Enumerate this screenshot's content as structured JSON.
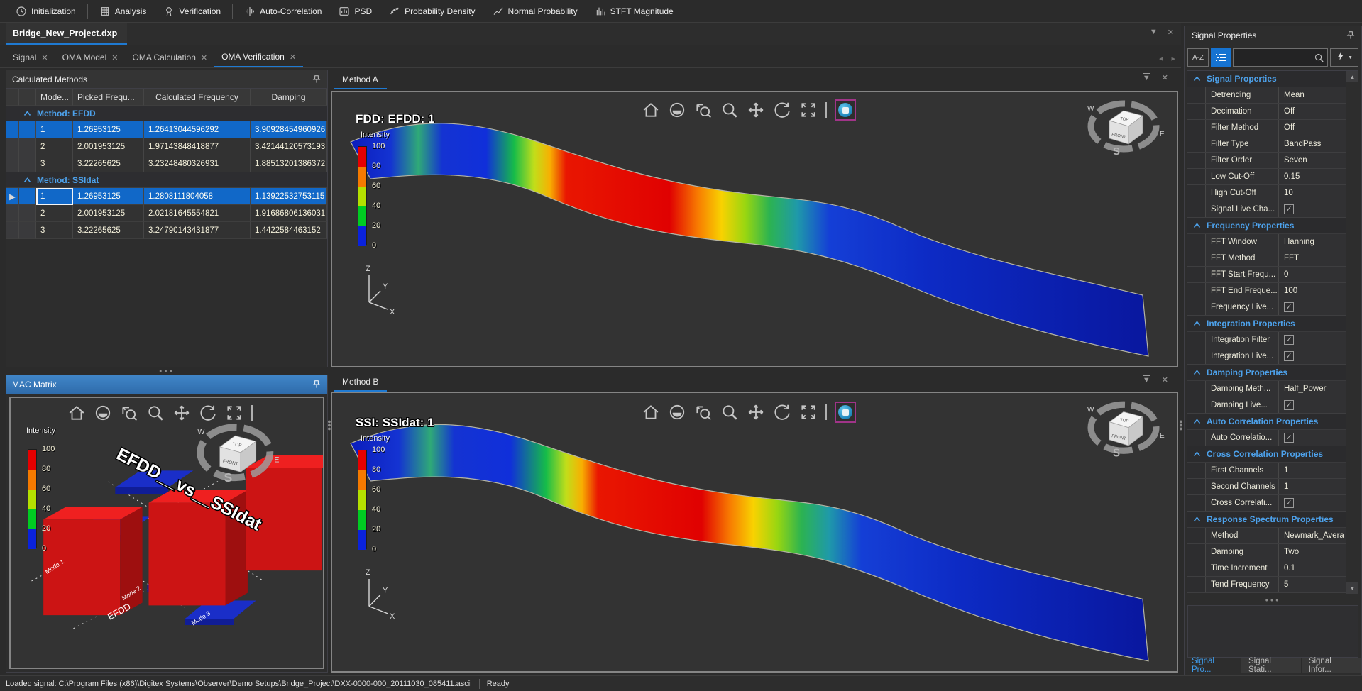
{
  "toolbar": {
    "groups": [
      [
        {
          "label": "Initialization",
          "icon": "clock-icon"
        }
      ],
      [
        {
          "label": "Analysis",
          "icon": "building-icon"
        },
        {
          "label": "Verification",
          "icon": "badge-icon"
        }
      ],
      [
        {
          "label": "Auto-Correlation",
          "icon": "waveform-icon"
        },
        {
          "label": "PSD",
          "icon": "psd-chart-icon"
        },
        {
          "label": "Probability Density",
          "icon": "scatter-icon"
        },
        {
          "label": "Normal Probability",
          "icon": "trend-line-icon"
        },
        {
          "label": "STFT Magnitude",
          "icon": "bars-icon"
        }
      ]
    ]
  },
  "document_tab": {
    "title": "Bridge_New_Project.dxp"
  },
  "workspace_tabs": [
    {
      "label": "Signal",
      "active": false
    },
    {
      "label": "OMA Model",
      "active": false
    },
    {
      "label": "OMA Calculation",
      "active": false
    },
    {
      "label": "OMA Verification",
      "active": true
    }
  ],
  "calculated_methods": {
    "title": "Calculated Methods",
    "columns": [
      "Mode...",
      "Picked  Frequ...",
      "Calculated Frequency",
      "Damping"
    ],
    "groups": [
      {
        "label": "Method: EFDD",
        "rows": [
          {
            "mode": "1",
            "picked": "1.26953125",
            "calculated": "1.26413044596292",
            "damping": "3.90928454960926",
            "selected": true,
            "current": false
          },
          {
            "mode": "2",
            "picked": "2.001953125",
            "calculated": "1.97143848418877",
            "damping": "3.42144120573193",
            "selected": false,
            "current": false
          },
          {
            "mode": "3",
            "picked": "3.22265625",
            "calculated": "3.23248480326931",
            "damping": "1.88513201386372",
            "selected": false,
            "current": false
          }
        ]
      },
      {
        "label": "Method: SSIdat",
        "rows": [
          {
            "mode": "1",
            "picked": "1.26953125",
            "calculated": "1.2808111804058",
            "damping": "1.13922532753115",
            "selected": true,
            "current": true
          },
          {
            "mode": "2",
            "picked": "2.001953125",
            "calculated": "2.02181645554821",
            "damping": "1.91686806136031",
            "selected": false,
            "current": false
          },
          {
            "mode": "3",
            "picked": "3.22265625",
            "calculated": "3.24790143431877",
            "damping": "1.4422584463152",
            "selected": false,
            "current": false
          }
        ]
      }
    ]
  },
  "mac_matrix": {
    "title": "MAC Matrix",
    "plot_title": "EFDD__vs__SSIdat",
    "axis_label": "EFDD",
    "x_labels": [
      "Mode 1",
      "Mode 2",
      "Mode 3"
    ],
    "colorbar": {
      "label": "Intensity",
      "ticks": [
        "100",
        "80",
        "60",
        "40",
        "20",
        "0"
      ]
    },
    "toolbar_icons": [
      "home-icon",
      "orbit-icon",
      "zoom-region-icon",
      "zoom-icon",
      "pan-icon",
      "rotate-icon",
      "expand-icon",
      "separator"
    ]
  },
  "method_a": {
    "tab": "Method A",
    "plot_title": "FDD: EFDD: 1",
    "colorbar": {
      "label": "Intensity",
      "ticks": [
        "100",
        "80",
        "60",
        "40",
        "20",
        "0"
      ]
    },
    "toolbar_icons": [
      "home-icon",
      "orbit-icon",
      "zoom-region-icon",
      "zoom-icon",
      "pan-icon",
      "rotate-icon",
      "expand-icon",
      "separator",
      "record-icon"
    ]
  },
  "method_b": {
    "tab": "Method B",
    "plot_title": "SSI: SSIdat: 1",
    "colorbar": {
      "label": "Intensity",
      "ticks": [
        "100",
        "80",
        "60",
        "40",
        "20",
        "0"
      ]
    },
    "toolbar_icons": [
      "home-icon",
      "orbit-icon",
      "zoom-region-icon",
      "zoom-icon",
      "pan-icon",
      "rotate-icon",
      "expand-icon",
      "separator",
      "record-icon"
    ]
  },
  "nav_cube": {
    "top": "TOP",
    "front": "FRONT",
    "west": "W",
    "east": "E",
    "south": "S"
  },
  "axis_triad": {
    "x": "X",
    "y": "Y",
    "z": "Z"
  },
  "signal_properties": {
    "title": "Signal Properties",
    "filter": {
      "az_label": "A-Z",
      "search_placeholder": ""
    },
    "groups": [
      {
        "label": "Signal Properties",
        "rows": [
          {
            "name": "Detrending",
            "value": "Mean",
            "type": "text"
          },
          {
            "name": "Decimation",
            "value": "Off",
            "type": "text"
          },
          {
            "name": "Filter Method",
            "value": "Off",
            "type": "text"
          },
          {
            "name": "Filter Type",
            "value": "BandPass",
            "type": "text"
          },
          {
            "name": "Filter Order",
            "value": "Seven",
            "type": "text"
          },
          {
            "name": "Low Cut-Off",
            "value": "0.15",
            "type": "text"
          },
          {
            "name": "High Cut-Off",
            "value": "10",
            "type": "text"
          },
          {
            "name": "Signal  Live  Cha...",
            "value": "checked",
            "type": "check"
          }
        ]
      },
      {
        "label": "Frequency Properties",
        "rows": [
          {
            "name": "FFT Window",
            "value": "Hanning",
            "type": "text"
          },
          {
            "name": "FFT Method",
            "value": "FFT",
            "type": "text"
          },
          {
            "name": "FFT  Start  Frequ...",
            "value": "0",
            "type": "text"
          },
          {
            "name": "FFT  End  Freque...",
            "value": "100",
            "type": "text"
          },
          {
            "name": "Frequency  Live...",
            "value": "checked",
            "type": "check"
          }
        ]
      },
      {
        "label": "Integration Properties",
        "rows": [
          {
            "name": "Integration Filter",
            "value": "checked",
            "type": "check"
          },
          {
            "name": "Integration  Live...",
            "value": "checked",
            "type": "check"
          }
        ]
      },
      {
        "label": "Damping Properties",
        "rows": [
          {
            "name": "Damping  Meth...",
            "value": "Half_Power",
            "type": "text"
          },
          {
            "name": "Damping  Live...",
            "value": "checked",
            "type": "check"
          }
        ]
      },
      {
        "label": "Auto Correlation Properties",
        "rows": [
          {
            "name": "Auto  Correlatio...",
            "value": "checked",
            "type": "check"
          }
        ]
      },
      {
        "label": "Cross Correlation Properties",
        "rows": [
          {
            "name": "First Channels",
            "value": "1",
            "type": "text"
          },
          {
            "name": "Second Channels",
            "value": "1",
            "type": "text"
          },
          {
            "name": "Cross  Correlati...",
            "value": "checked",
            "type": "check"
          }
        ]
      },
      {
        "label": "Response Spectrum Properties",
        "rows": [
          {
            "name": "Method",
            "value": "Newmark_Avera",
            "type": "text"
          },
          {
            "name": "Damping",
            "value": "Two",
            "type": "text"
          },
          {
            "name": "Time Increment",
            "value": "0.1",
            "type": "text"
          },
          {
            "name": "Tend Frequency",
            "value": "5",
            "type": "text"
          }
        ]
      }
    ],
    "bottom_tabs": [
      {
        "label": "Signal  Pro...",
        "active": true
      },
      {
        "label": "Signal  Stati...",
        "active": false
      },
      {
        "label": "Signal  Infor...",
        "active": false
      }
    ]
  },
  "status_bar": {
    "message": "Loaded signal: C:\\Program Files (x86)\\Digitex Systems\\Observer\\Demo Setups\\Bridge_Project\\DXX-0000-000_20111030_085411.ascii",
    "state": "Ready"
  }
}
